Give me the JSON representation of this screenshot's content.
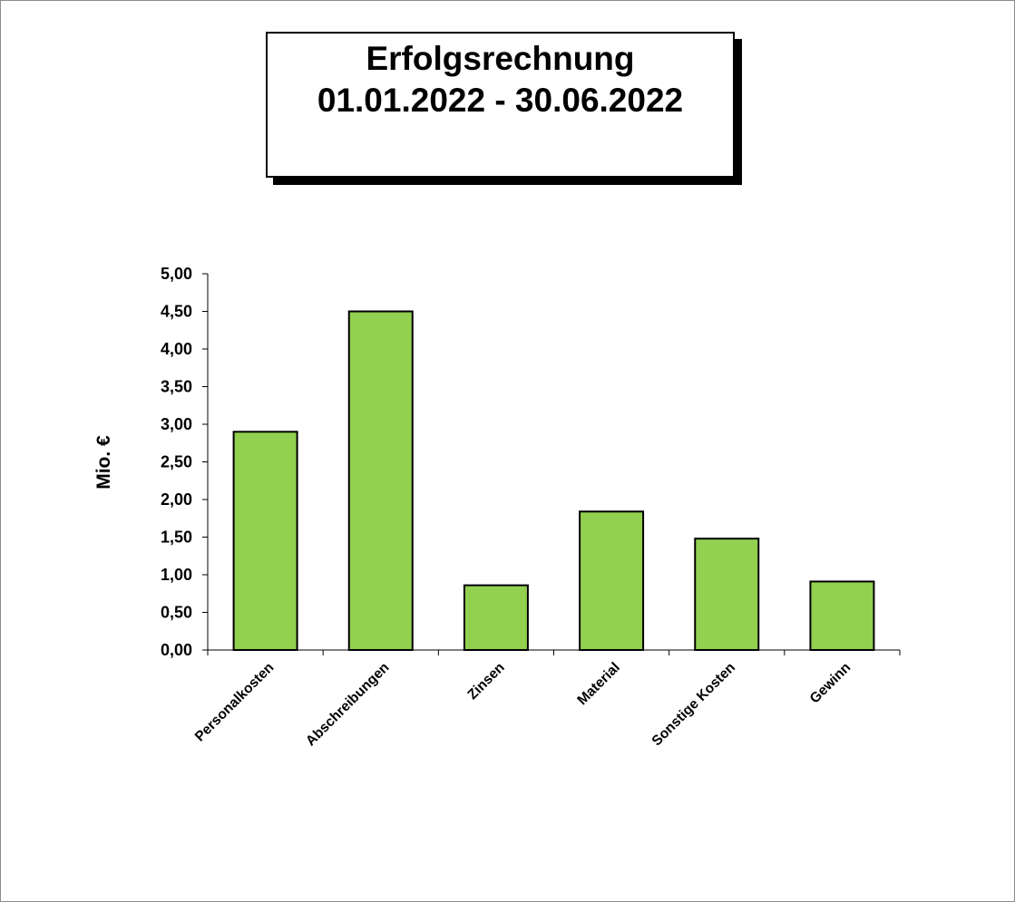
{
  "chart_data": {
    "type": "bar",
    "title": [
      "Erfolgsrechnung",
      "01.01.2022 - 30.06.2022"
    ],
    "ylabel": "Mio. €",
    "xlabel": "",
    "categories": [
      "Personalkosten",
      "Abschreibungen",
      "Zinsen",
      "Material",
      "Sonstige Kosten",
      "Gewinn"
    ],
    "values": [
      2.9,
      4.5,
      0.86,
      1.84,
      1.48,
      0.91
    ],
    "ylim": [
      0,
      5
    ],
    "yticks": [
      "0,00",
      "0,50",
      "1,00",
      "1,50",
      "2,00",
      "2,50",
      "3,00",
      "3,50",
      "4,00",
      "4,50",
      "5,00"
    ],
    "grid": false,
    "legend": "none",
    "bar_color": "#92d050",
    "bar_edge_color": "#000000"
  }
}
